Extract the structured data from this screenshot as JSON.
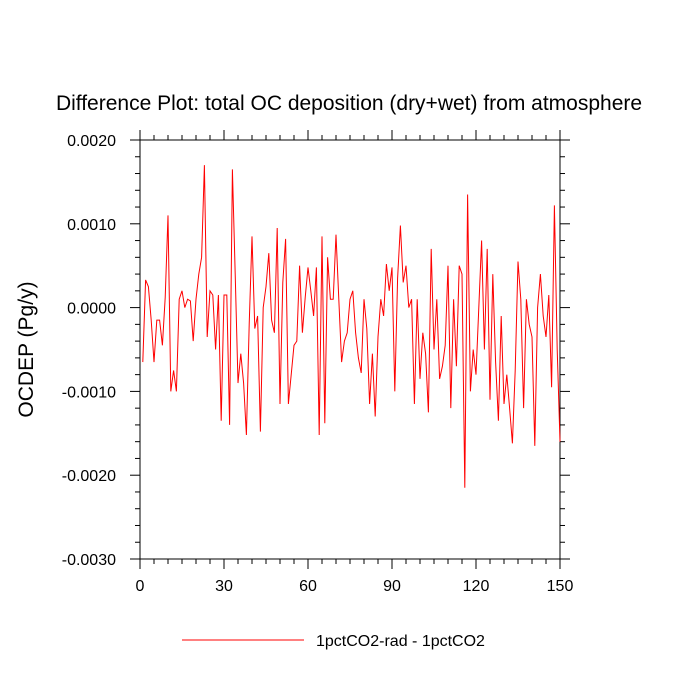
{
  "chart_data": {
    "type": "line",
    "title": "Difference Plot: total OC deposition (dry+wet) from atmosphere",
    "xlabel": "",
    "ylabel": "OCDEP  (Pg/y)",
    "xlim": [
      0,
      150
    ],
    "ylim": [
      -0.003,
      0.002
    ],
    "x_ticks": [
      0,
      30,
      60,
      90,
      120,
      150
    ],
    "x_tick_labels": [
      "0",
      "30",
      "60",
      "90",
      "120",
      "150"
    ],
    "y_ticks": [
      -0.003,
      -0.002,
      -0.001,
      0.0,
      0.001,
      0.002
    ],
    "y_tick_labels": [
      "-0.0030",
      "-0.0020",
      "-0.0010",
      "0.0000",
      "0.0010",
      "0.0020"
    ],
    "grid": false,
    "legend_position": "bottom",
    "series": [
      {
        "name": "1pctCO2-rad - 1pctCO2",
        "color": "#ff0000",
        "x": [
          1,
          2,
          3,
          4,
          5,
          6,
          7,
          8,
          9,
          10,
          11,
          12,
          13,
          14,
          15,
          16,
          17,
          18,
          19,
          20,
          21,
          22,
          23,
          24,
          25,
          26,
          27,
          28,
          29,
          30,
          31,
          32,
          33,
          34,
          35,
          36,
          37,
          38,
          39,
          40,
          41,
          42,
          43,
          44,
          45,
          46,
          47,
          48,
          49,
          50,
          51,
          52,
          53,
          54,
          55,
          56,
          57,
          58,
          59,
          60,
          61,
          62,
          63,
          64,
          65,
          66,
          67,
          68,
          69,
          70,
          71,
          72,
          73,
          74,
          75,
          76,
          77,
          78,
          79,
          80,
          81,
          82,
          83,
          84,
          85,
          86,
          87,
          88,
          89,
          90,
          91,
          92,
          93,
          94,
          95,
          96,
          97,
          98,
          99,
          100,
          101,
          102,
          103,
          104,
          105,
          106,
          107,
          108,
          109,
          110,
          111,
          112,
          113,
          114,
          115,
          116,
          117,
          118,
          119,
          120,
          121,
          122,
          123,
          124,
          125,
          126,
          127,
          128,
          129,
          130,
          131,
          132,
          133,
          134,
          135,
          136,
          137,
          138,
          139,
          140,
          141,
          142,
          143,
          144,
          145,
          146,
          147,
          148,
          149,
          150
        ],
        "values": [
          -0.00065,
          0.00033,
          0.00025,
          -0.00015,
          -0.00065,
          -0.00015,
          -0.00015,
          -0.00045,
          0.00012,
          0.0011,
          -0.001,
          -0.00075,
          -0.001,
          0.0001,
          0.0002,
          0.0,
          0.0001,
          8e-05,
          -0.0004,
          0.0001,
          0.0004,
          0.0006,
          0.0017,
          -0.00035,
          0.0002,
          0.00015,
          -0.0005,
          0.00015,
          -0.00135,
          0.00015,
          0.00015,
          -0.0014,
          0.00165,
          0.0004,
          -0.0009,
          -0.00055,
          -0.0009,
          -0.00152,
          -0.0002,
          0.00085,
          -0.00025,
          -0.0001,
          -0.00148,
          0.0,
          0.00025,
          0.00065,
          -0.00015,
          -0.0003,
          0.00095,
          -0.00115,
          0.0003,
          0.00082,
          -0.00115,
          -0.0008,
          -0.00045,
          -0.0004,
          0.0005,
          -0.0003,
          0.00012,
          0.00048,
          0.0002,
          -0.0001,
          0.00048,
          -0.00152,
          0.00085,
          -0.00138,
          0.0006,
          0.0001,
          0.0001,
          0.00087,
          0.0001,
          -0.00065,
          -0.0004,
          -0.0003,
          0.0001,
          0.0002,
          -0.0003,
          -0.0006,
          -0.00078,
          0.0001,
          -0.00025,
          -0.00115,
          -0.00055,
          -0.0013,
          -0.00035,
          0.0001,
          -0.0001,
          0.00052,
          0.0002,
          0.00048,
          -0.001,
          0.00035,
          0.00098,
          0.0003,
          0.0005,
          0.0,
          0.0001,
          -0.00115,
          0.0001,
          -0.00085,
          -0.0003,
          -0.00055,
          -0.00125,
          0.0007,
          -0.0005,
          0.0001,
          -0.00085,
          -0.0007,
          -0.00045,
          0.0005,
          -0.0012,
          0.0001,
          -0.0007,
          0.0005,
          0.0004,
          -0.00215,
          0.00135,
          -0.001,
          -0.0005,
          -0.0008,
          0.0,
          0.0008,
          -0.0005,
          0.0007,
          -0.0011,
          0.0004,
          -0.00065,
          -0.00135,
          -0.0001,
          -0.00115,
          -0.0008,
          -0.0012,
          -0.00162,
          -0.00075,
          0.00055,
          0.0001,
          -0.0012,
          0.0001,
          -0.0002,
          -0.00035,
          -0.00165,
          0.0,
          0.0004,
          -0.0001,
          -0.00035,
          0.00015,
          -0.00095,
          0.00122,
          -0.0005,
          -0.0016
        ]
      }
    ]
  }
}
